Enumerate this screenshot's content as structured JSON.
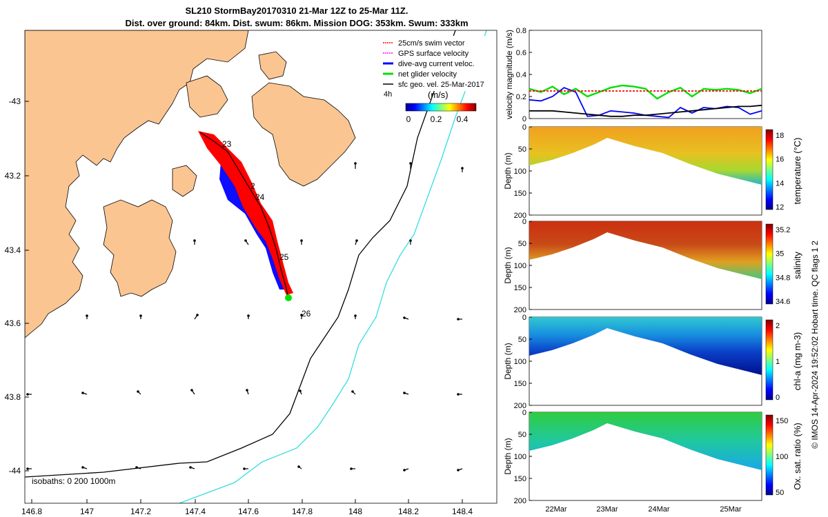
{
  "header": {
    "title_line1": "SL210 StormBay20170310 21-Mar 12Z to 25-Mar 11Z.",
    "title_line2": "Dist. over ground: 84km. Dist. swum: 86km. Mission DOG: 353km. Swum: 333km"
  },
  "map": {
    "legend": {
      "items": [
        {
          "label": "25cm/s swim vector",
          "color": "#ff0000"
        },
        {
          "label": "GPS surface velocity",
          "color": "#ff00ff"
        },
        {
          "label": "dive-avg current veloc.",
          "color": "#0000ff"
        },
        {
          "label": "net glider velocity",
          "color": "#00e000"
        },
        {
          "label": "sfc geo. vel. 25-Mar-2017",
          "color": "#000000"
        }
      ],
      "time_label": "4h"
    },
    "colorbar": {
      "unit": "(m/s)",
      "ticks": [
        "0",
        "0.2",
        "0.4"
      ]
    },
    "isobaths_label": "isobaths: 0   200  1000m",
    "day_labels": [
      "23",
      "2",
      "24",
      "25",
      "26"
    ],
    "land_color": "#fbc592",
    "isobath_200_color": "#000000",
    "isobath_1000_color": "#33dde0",
    "x_ticks": [
      "146.8",
      "147",
      "147.2",
      "147.4",
      "147.6",
      "147.8",
      "148",
      "148.2",
      "148.4"
    ],
    "y_ticks": [
      "-43",
      "43.2",
      "43.4",
      "43.6",
      "43.8",
      "-44"
    ]
  },
  "velocity_panel": {
    "ylabel": "velocity magnitude (m/s)",
    "y_ticks": [
      "0",
      "0.2",
      "0.4",
      "0.6",
      "0.8"
    ]
  },
  "sections": [
    {
      "ylabel": "Depth (m)",
      "cbar_label": "temperature (°C)",
      "cbar_ticks": [
        "12",
        "14",
        "16",
        "18"
      ]
    },
    {
      "ylabel": "Depth (m)",
      "cbar_label": "salinity",
      "cbar_ticks": [
        "34.6",
        "34.8",
        "35",
        "35.2"
      ]
    },
    {
      "ylabel": "Depth (m)",
      "cbar_label": "chl-a (mg m-3)",
      "cbar_ticks": [
        "0",
        "1",
        "2"
      ]
    },
    {
      "ylabel": "Depth (m)",
      "cbar_label": "Ox. sat. ratio (%)",
      "cbar_ticks": [
        "50",
        "100",
        "150"
      ]
    }
  ],
  "depth_ticks": [
    "0",
    "50",
    "100",
    "150",
    "200"
  ],
  "time_ticks": [
    "22Mar",
    "23Mar",
    "24Mar",
    "25Mar"
  ],
  "side_note": "© IMOS 14-Apr-2024 19:52:02 Hobart time. QC flags 1  2",
  "chart_data": [
    {
      "type": "scatter",
      "x_ticks": [
        "146.8",
        "147",
        "147.2",
        "147.4",
        "147.6",
        "147.8",
        "148",
        "148.2",
        "148.4"
      ],
      "y_ticks": [
        "-43",
        "43.2",
        "43.4",
        "43.6",
        "43.8",
        "-44"
      ],
      "xlim": [
        146.78,
        148.53
      ],
      "ylim": [
        -44.08,
        -42.82
      ],
      "glider_track": {
        "x": [
          147.42,
          147.47,
          147.53,
          147.58,
          147.62,
          147.66,
          147.69,
          147.72,
          147.75
        ],
        "y": [
          -43.08,
          -43.13,
          -43.17,
          -43.23,
          -43.3,
          -43.36,
          -43.42,
          -43.48,
          -43.54
        ]
      },
      "day_markers": [
        {
          "label": "23",
          "x": 147.5,
          "y": -43.12
        },
        {
          "label": "2",
          "x": 147.62,
          "y": -43.23
        },
        {
          "label": "24",
          "x": 147.64,
          "y": -43.27
        },
        {
          "label": "25",
          "x": 147.7,
          "y": -43.43
        },
        {
          "label": "26",
          "x": 147.78,
          "y": -43.6
        }
      ]
    },
    {
      "type": "line",
      "ylabel": "velocity magnitude (m/s)",
      "ylim": [
        0,
        0.8
      ],
      "x_ticks": [
        "22Mar",
        "23Mar",
        "24Mar",
        "25Mar"
      ],
      "xlim": [
        0,
        4
      ],
      "series": [
        {
          "color": "#00e000",
          "values": [
            0.27,
            0.24,
            0.29,
            0.22,
            0.27,
            0.2,
            0.24,
            0.28,
            0.3,
            0.29,
            0.27,
            0.18,
            0.24,
            0.28,
            0.2,
            0.27,
            0.26,
            0.27,
            0.26,
            0.23,
            0.27
          ]
        },
        {
          "color": "#0000ff",
          "values": [
            0.17,
            0.16,
            0.2,
            0.28,
            0.24,
            0.02,
            0.03,
            0.07,
            0.06,
            0.05,
            0.03,
            0.02,
            0.01,
            0.1,
            0.05,
            0.1,
            0.09,
            0.11,
            0.1,
            0.04,
            0.07
          ]
        },
        {
          "color": "#000000",
          "values": [
            0.07,
            0.07,
            0.07,
            0.06,
            0.05,
            0.04,
            0.03,
            0.02,
            0.02,
            0.03,
            0.03,
            0.04,
            0.05,
            0.06,
            0.07,
            0.08,
            0.09,
            0.1,
            0.11,
            0.11,
            0.12
          ]
        },
        {
          "color": "#ff0000",
          "values": [
            0.25,
            0.25,
            0.25,
            0.25,
            0.25,
            0.25,
            0.25,
            0.25,
            0.25,
            0.25,
            0.25,
            0.25,
            0.25,
            0.25,
            0.25,
            0.25,
            0.25,
            0.25,
            0.25,
            0.25,
            0.25
          ]
        }
      ]
    }
  ]
}
